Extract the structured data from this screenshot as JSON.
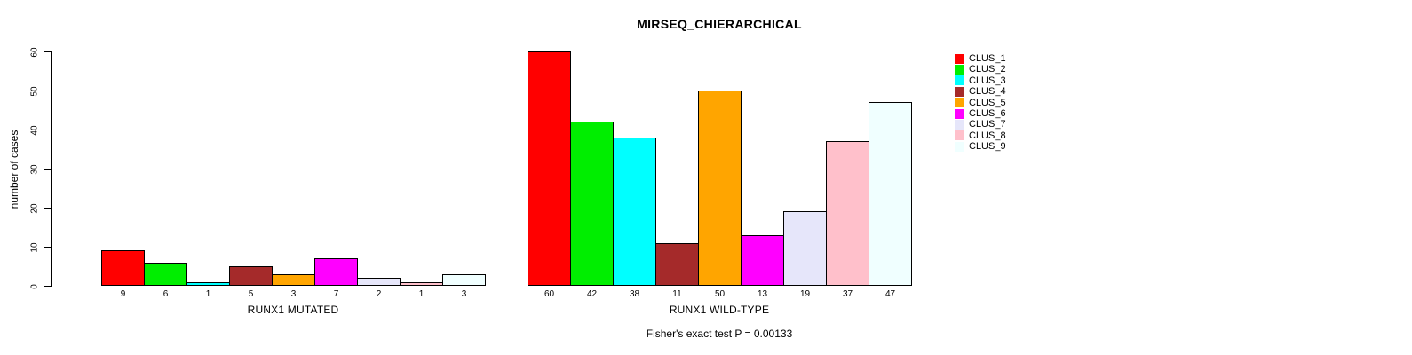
{
  "page": {
    "background": "#ffffff"
  },
  "chart_data": {
    "type": "bar",
    "title": "MIRSEQ_CHIERARCHICAL",
    "ylabel": "number of cases",
    "annotation": "Fisher's exact test P = 0.00133",
    "ylim": [
      0,
      60
    ],
    "yticks": [
      0,
      10,
      20,
      30,
      40,
      50,
      60
    ],
    "grid": false,
    "legend_position": "right",
    "bar_outline_color": "#000000",
    "groups": [
      {
        "label": "RUNX1 MUTATED",
        "values": [
          9,
          6,
          1,
          5,
          3,
          7,
          2,
          1,
          3
        ]
      },
      {
        "label": "RUNX1 WILD-TYPE",
        "values": [
          60,
          42,
          38,
          11,
          50,
          13,
          19,
          37,
          47
        ]
      }
    ],
    "legend": [
      {
        "label": "CLUS_1",
        "color": "#FF0000"
      },
      {
        "label": "CLUS_2",
        "color": "#00EE00"
      },
      {
        "label": "CLUS_3",
        "color": "#00FFFF"
      },
      {
        "label": "CLUS_4",
        "color": "#A52A2A"
      },
      {
        "label": "CLUS_5",
        "color": "#FFA500"
      },
      {
        "label": "CLUS_6",
        "color": "#FF00FF"
      },
      {
        "label": "CLUS_7",
        "color": "#E6E6FA"
      },
      {
        "label": "CLUS_8",
        "color": "#FFC0CB"
      },
      {
        "label": "CLUS_9",
        "color": "#F0FFFF"
      }
    ]
  }
}
